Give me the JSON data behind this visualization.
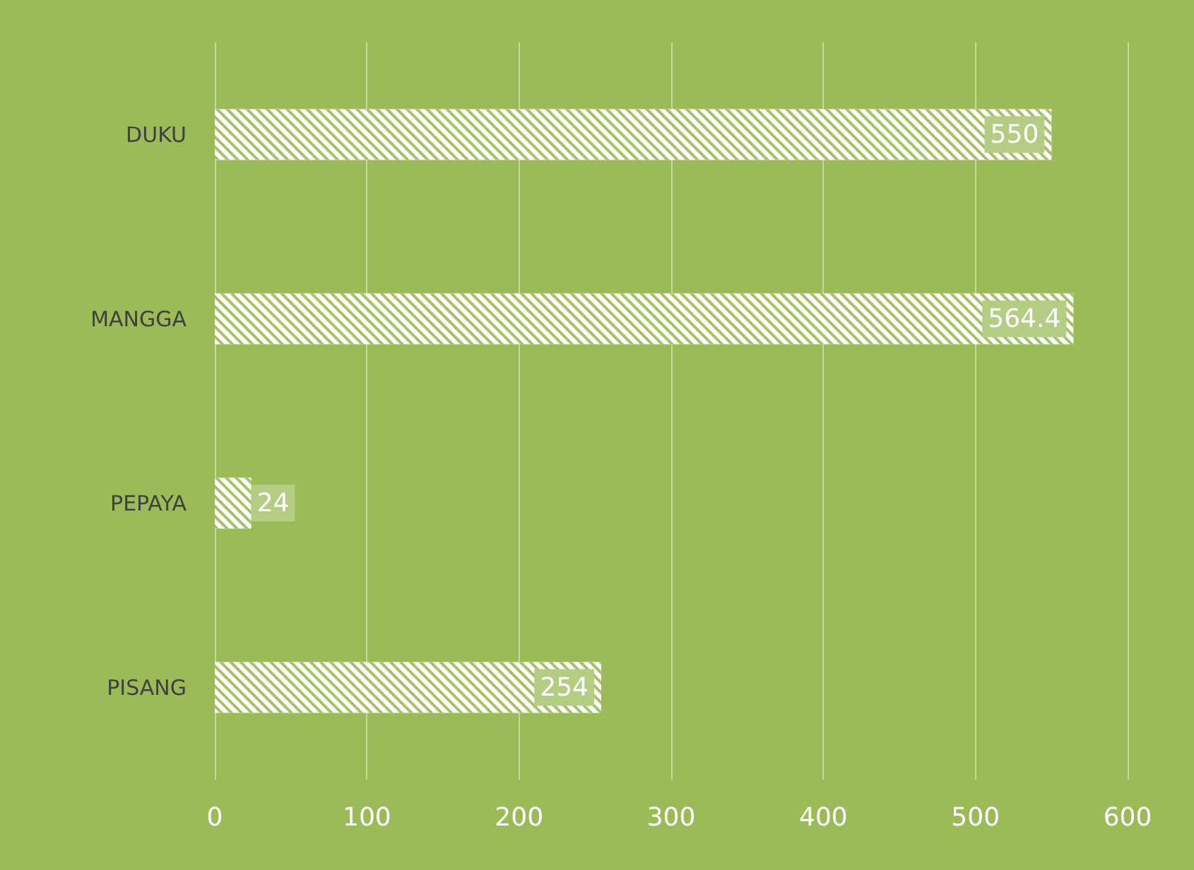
{
  "chart_data": {
    "type": "bar",
    "orientation": "horizontal",
    "categories": [
      "DUKU",
      "MANGGA",
      "PEPAYA",
      "PISANG"
    ],
    "values": [
      550,
      564.4,
      24,
      254
    ],
    "color": "#ffffff",
    "xlim": [
      0,
      600
    ],
    "xticks": [
      0,
      100,
      200,
      300,
      400,
      500,
      600
    ],
    "grid": "x",
    "data_labels": true
  }
}
